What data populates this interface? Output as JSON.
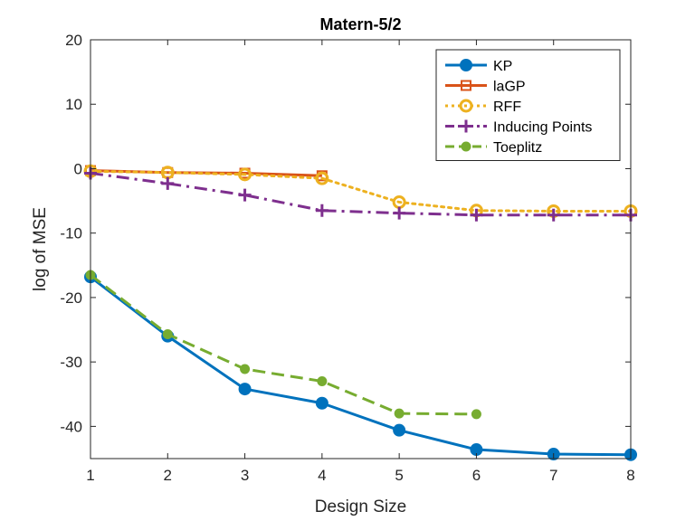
{
  "chart_data": {
    "type": "line",
    "title": "Matern-5/2",
    "xlabel": "Design Size",
    "ylabel": "log of MSE",
    "xlim": [
      1,
      8
    ],
    "ylim": [
      -45,
      20
    ],
    "xticks": [
      1,
      2,
      3,
      4,
      5,
      6,
      7,
      8
    ],
    "yticks": [
      20,
      10,
      0,
      -10,
      -20,
      -30,
      -40
    ],
    "grid": false,
    "legend_position": "top-right",
    "series": [
      {
        "name": "KP",
        "color": "#0072BD",
        "line_style": "solid",
        "marker": "filled-circle",
        "x": [
          1,
          2,
          3,
          4,
          5,
          6,
          7,
          8
        ],
        "values": [
          -16.8,
          -26.0,
          -34.2,
          -36.4,
          -40.6,
          -43.6,
          -44.3,
          -44.4
        ]
      },
      {
        "name": "laGP",
        "color": "#D95319",
        "line_style": "solid",
        "marker": "square",
        "x": [
          1,
          2,
          3,
          4
        ],
        "values": [
          -0.3,
          -0.6,
          -0.7,
          -1.1
        ]
      },
      {
        "name": "RFF",
        "color": "#EDB120",
        "line_style": "dotted",
        "marker": "open-circle",
        "x": [
          1,
          2,
          3,
          4,
          5,
          6,
          7,
          8
        ],
        "values": [
          -0.4,
          -0.6,
          -0.9,
          -1.5,
          -5.2,
          -6.5,
          -6.6,
          -6.6
        ]
      },
      {
        "name": "Inducing Points",
        "color": "#7E2F8E",
        "line_style": "dashdot",
        "marker": "plus",
        "x": [
          1,
          2,
          3,
          4,
          5,
          6,
          7,
          8
        ],
        "values": [
          -0.7,
          -2.3,
          -4.1,
          -6.5,
          -6.9,
          -7.2,
          -7.2,
          -7.2
        ]
      },
      {
        "name": "Toeplitz",
        "color": "#77AC30",
        "line_style": "dashed",
        "marker": "filled-circle-small",
        "x": [
          1,
          2,
          3,
          4,
          5,
          6
        ],
        "values": [
          -16.5,
          -25.7,
          -31.1,
          -33.0,
          -38.0,
          -38.1
        ]
      }
    ]
  }
}
